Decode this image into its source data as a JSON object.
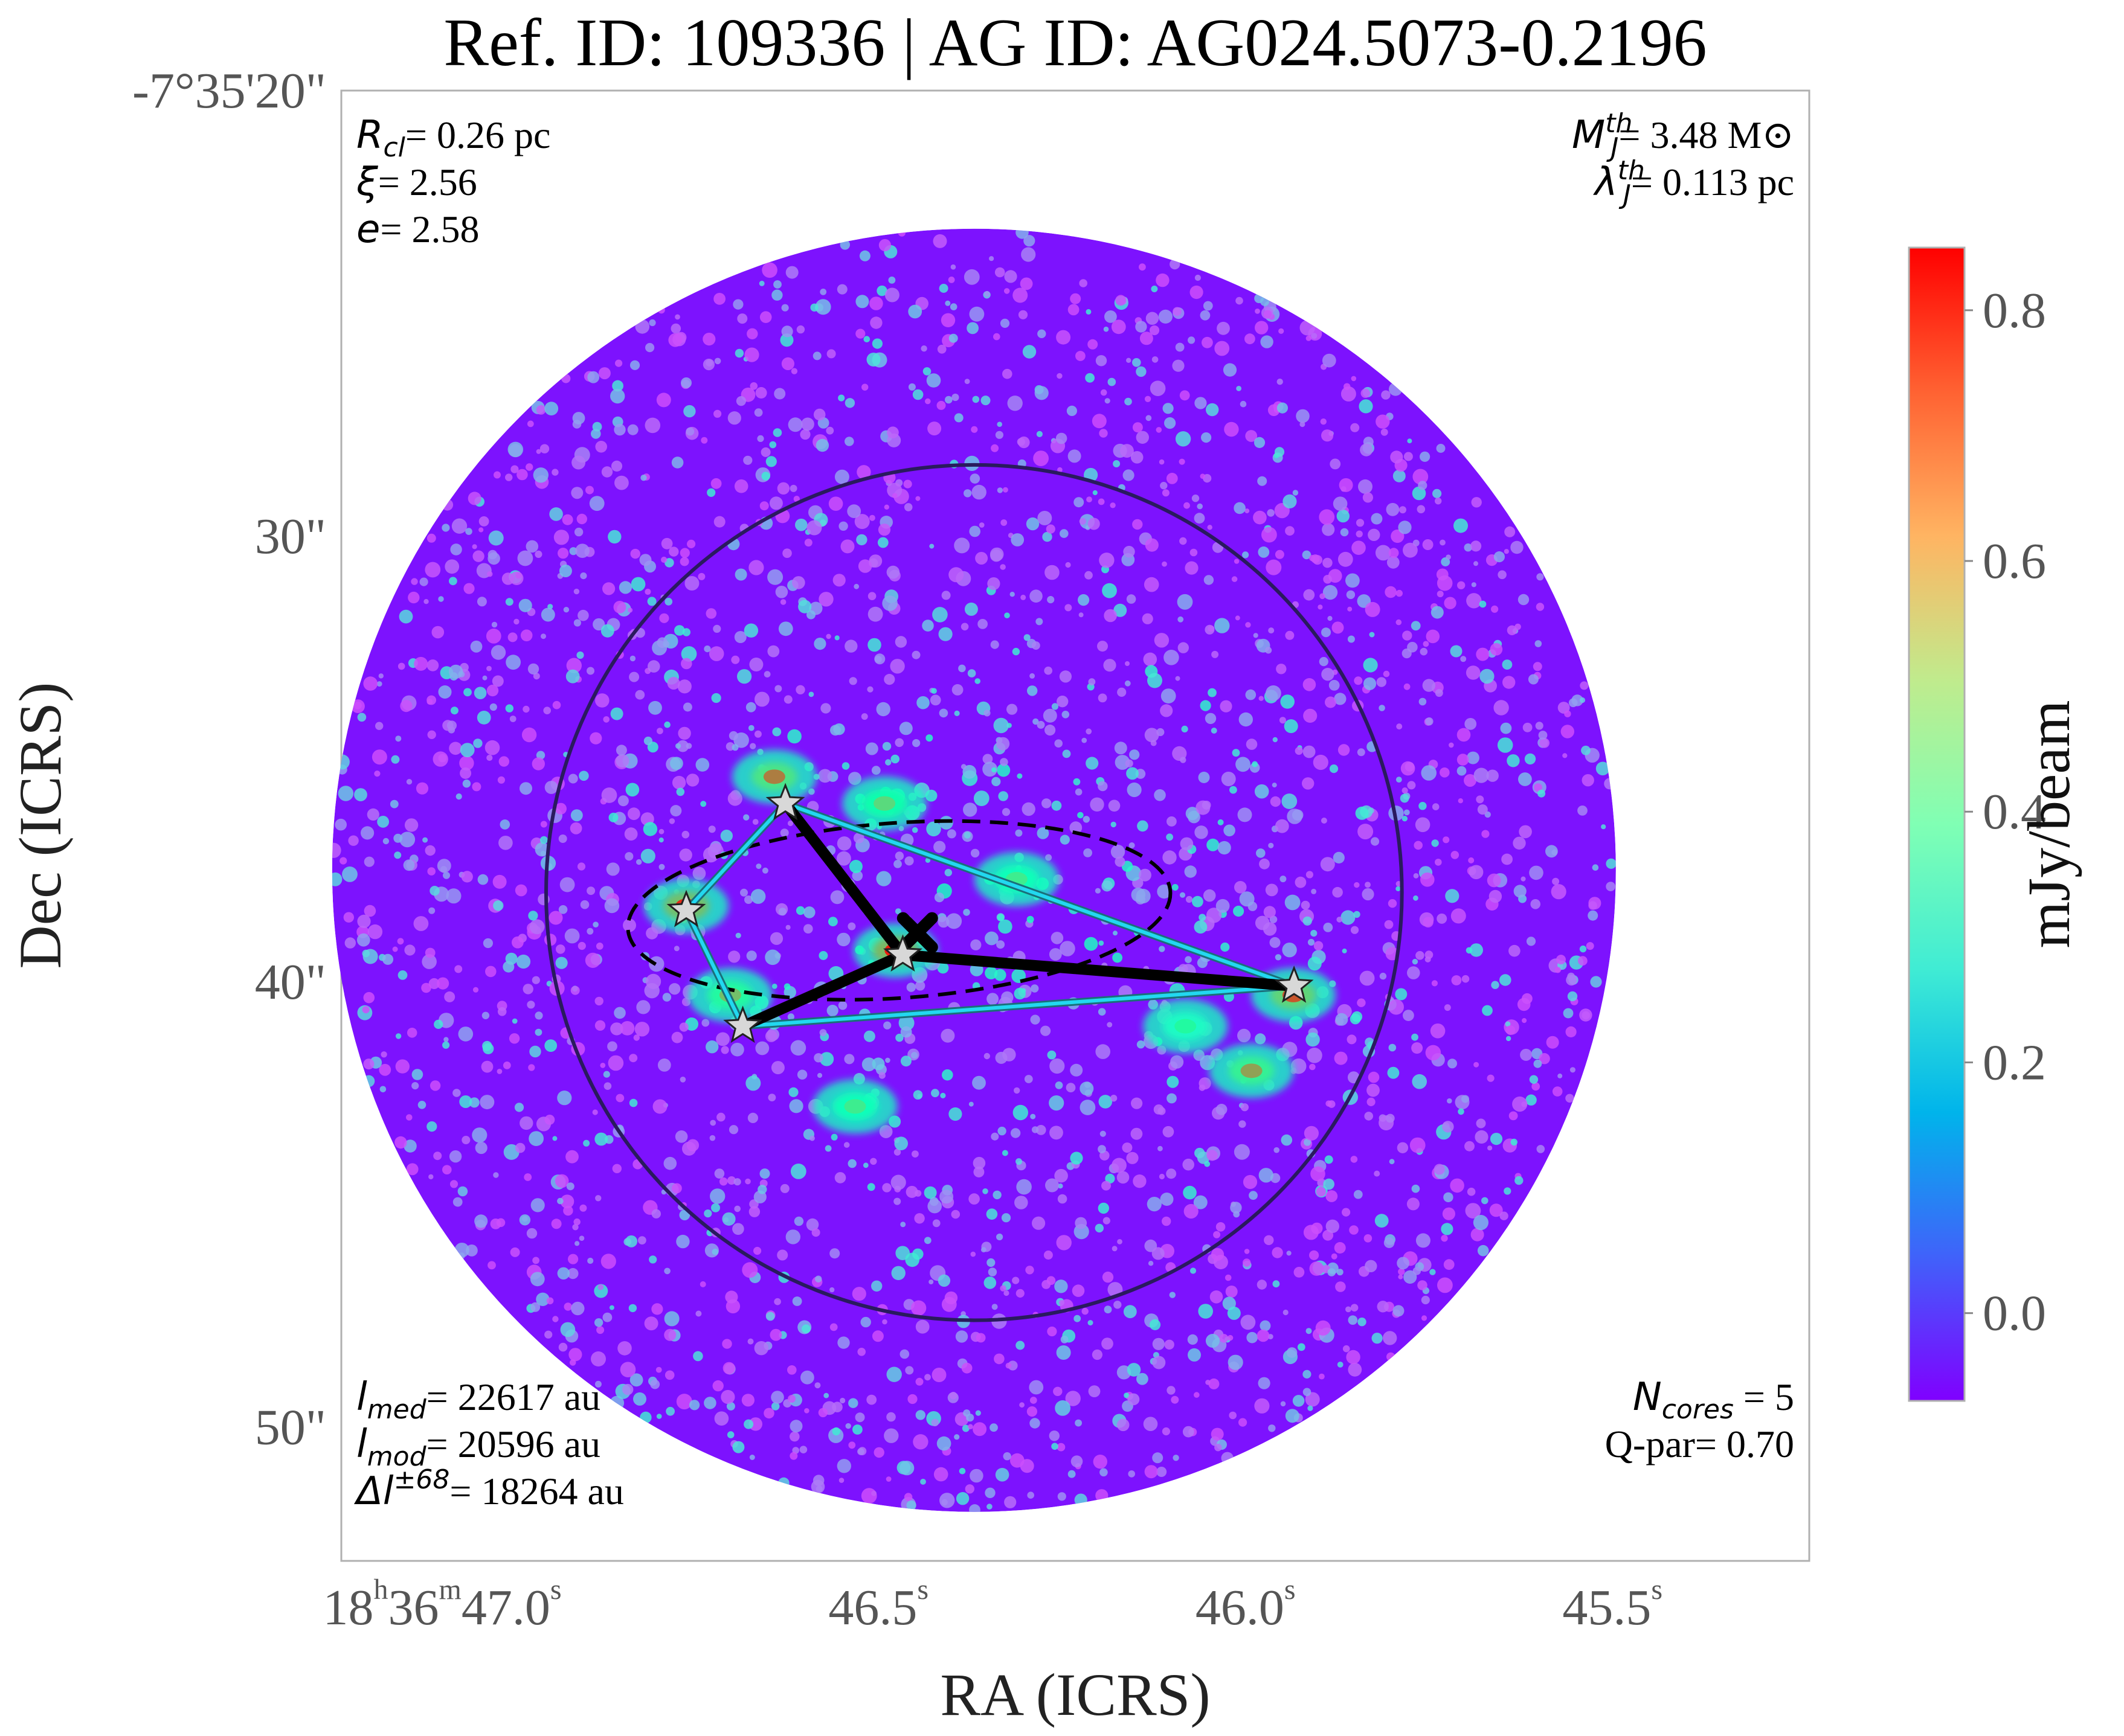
{
  "chart_data": {
    "type": "heatmap",
    "title": "Ref. ID: 109336 | AG ID: AG024.5073-0.2196",
    "xlabel": "RA (ICRS)",
    "ylabel": "Dec (ICRS)",
    "x_ticks": [
      {
        "h": "18",
        "m": "36",
        "s": "47.0",
        "ra_sec": 47.0
      },
      {
        "h": "",
        "m": "",
        "s": "46.5",
        "ra_sec": 46.5
      },
      {
        "h": "",
        "m": "",
        "s": "46.0",
        "ra_sec": 46.0
      },
      {
        "h": "",
        "m": "",
        "s": "45.5",
        "ra_sec": 45.5
      }
    ],
    "y_ticks": [
      {
        "label": "-7°35'20\"",
        "dec_arcsec": 20
      },
      {
        "label": "30\"",
        "dec_arcsec": 30
      },
      {
        "label": "40\"",
        "dec_arcsec": 40
      },
      {
        "label": "50\"",
        "dec_arcsec": 50
      }
    ],
    "xlim": [
      47.3,
      45.3
    ],
    "ylim": [
      53,
      20
    ],
    "colorbar": {
      "label": "mJy/beam",
      "min": -0.07,
      "max": 0.85,
      "ticks": [
        0.0,
        0.2,
        0.4,
        0.6,
        0.8
      ],
      "tick_labels": [
        "0.0",
        "0.2",
        "0.4",
        "0.6",
        "0.8"
      ],
      "colormap": "rainbow"
    },
    "field": {
      "center_ra_sec": 46.438,
      "center_dec_arcsec": 37.5,
      "radius_arcsec": 14.4
    },
    "clump_circle": {
      "center_ra_sec": 46.438,
      "center_dec_arcsec": 38.0,
      "radius_arcsec": 9.6
    },
    "ellipse": {
      "center_ra_sec": 46.54,
      "center_dec_arcsec": 38.4
    },
    "cores": [
      {
        "ra_sec": 46.695,
        "dec_arcsec": 36.0
      },
      {
        "ra_sec": 46.83,
        "dec_arcsec": 38.4
      },
      {
        "ra_sec": 46.535,
        "dec_arcsec": 39.4
      },
      {
        "ra_sec": 46.753,
        "dec_arcsec": 41.0
      },
      {
        "ra_sec": 46.002,
        "dec_arcsec": 40.1
      }
    ],
    "centroid": {
      "ra_sec": 46.515,
      "dec_arcsec": 38.9
    },
    "mst_edges": [
      [
        0,
        2
      ],
      [
        2,
        3
      ],
      [
        2,
        4
      ]
    ],
    "hull_edges": [
      [
        0,
        1
      ],
      [
        1,
        3
      ],
      [
        3,
        4
      ],
      [
        4,
        0
      ]
    ],
    "hotspots": [
      {
        "ra_sec": 46.83,
        "dec_arcsec": 38.3,
        "value": 0.8
      },
      {
        "ra_sec": 46.545,
        "dec_arcsec": 39.3,
        "value": 0.82
      },
      {
        "ra_sec": 46.003,
        "dec_arcsec": 40.3,
        "value": 0.75
      },
      {
        "ra_sec": 46.71,
        "dec_arcsec": 35.4,
        "value": 0.7
      },
      {
        "ra_sec": 46.77,
        "dec_arcsec": 40.3,
        "value": 0.6
      },
      {
        "ra_sec": 46.06,
        "dec_arcsec": 42.0,
        "value": 0.65
      },
      {
        "ra_sec": 46.56,
        "dec_arcsec": 36.0,
        "value": 0.55
      },
      {
        "ra_sec": 46.38,
        "dec_arcsec": 37.7,
        "value": 0.5
      },
      {
        "ra_sec": 46.6,
        "dec_arcsec": 42.8,
        "value": 0.5
      },
      {
        "ra_sec": 46.15,
        "dec_arcsec": 41.0,
        "value": 0.45
      }
    ],
    "annotations": {
      "top_left": [
        {
          "sym": "R",
          "sub": "cl",
          "sup": "",
          "rest": "= 0.26 pc"
        },
        {
          "sym": "ξ",
          "sub": "",
          "sup": "",
          "rest": "= 2.56"
        },
        {
          "sym": "e",
          "sub": "",
          "sup": "",
          "rest": "= 2.58"
        }
      ],
      "top_right": [
        {
          "sym": "M",
          "sub": "J",
          "sup": "th",
          "rest": "= 3.48 M⊙"
        },
        {
          "sym": "λ",
          "sub": "J",
          "sup": "th",
          "rest": "= 0.113 pc"
        }
      ],
      "bottom_left": [
        {
          "sym": "l",
          "sub": "med",
          "sup": "",
          "rest": "= 22617 au"
        },
        {
          "sym": "l",
          "sub": "mod",
          "sup": "",
          "rest": "= 20596 au"
        },
        {
          "sym": "Δl",
          "sub": "",
          "sup": "±68",
          "rest": "= 18264 au"
        }
      ],
      "bottom_right": [
        {
          "sym": "N",
          "sub": "cores",
          "sup": "",
          "rest": " = 5"
        },
        {
          "sym": "Q-par",
          "sub": "",
          "sup": "",
          "rest": "= 0.70"
        }
      ]
    }
  }
}
